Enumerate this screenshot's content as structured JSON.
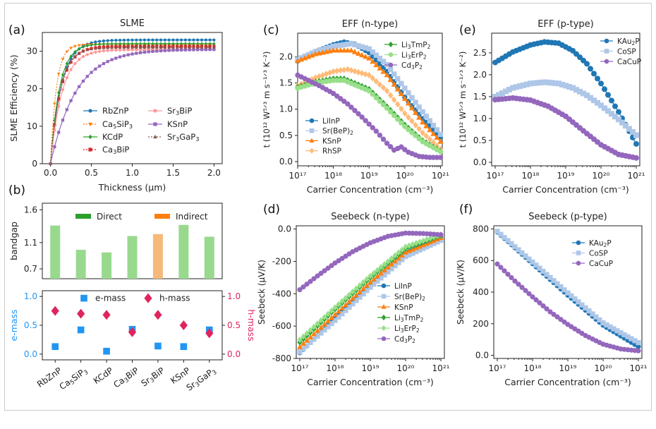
{
  "caption": "",
  "chart_data": [
    {
      "type": "line",
      "panel": "(a)",
      "title": "SLME",
      "xlabel": "Thickness (μm)",
      "ylabel": "SLME Efficiency (%)",
      "xlim": [
        -0.1,
        2.1
      ],
      "ylim": [
        0,
        35
      ],
      "xticks": [
        0.0,
        0.5,
        1.0,
        1.5,
        2.0
      ],
      "yticks": [
        0,
        10,
        20,
        30
      ],
      "legend_position": "center",
      "series": [
        {
          "name": "RbZnP",
          "color": "#1f77b4",
          "marker": "circle",
          "dash": "solid",
          "final": 33.0,
          "k": 7.5
        },
        {
          "name": "Ca5SiP3",
          "color": "#ff7f0e",
          "marker": "tri-down",
          "dash": "dotted",
          "final": 31.8,
          "k": 14.0
        },
        {
          "name": "KCdP",
          "color": "#2ca02c",
          "marker": "diamond",
          "dash": "solid",
          "final": 32.0,
          "k": 9.0
        },
        {
          "name": "Ca3BiP",
          "color": "#d62728",
          "marker": "square",
          "dash": "dotted",
          "final": 31.3,
          "k": 8.0
        },
        {
          "name": "Sr3BiP",
          "color": "#ff9896",
          "marker": "circle",
          "dash": "solid",
          "final": 30.4,
          "k": 7.0
        },
        {
          "name": "KSnP",
          "color": "#9467bd",
          "marker": "square",
          "dash": "solid",
          "final": 30.5,
          "k": 3.2
        },
        {
          "name": "Sr3GaP3",
          "color": "#8c564b",
          "marker": "triangle",
          "dash": "dotted",
          "final": 31.0,
          "k": 8.5
        }
      ]
    },
    {
      "type": "bar",
      "panel": "(b)",
      "ylabel": "bandgap",
      "categories": [
        "RbZnP",
        "Ca5SiP3",
        "KCdP",
        "Ca3BiP",
        "Sr3BiP",
        "KSnP",
        "Sr3GaP3"
      ],
      "values": [
        1.36,
        0.99,
        0.95,
        1.2,
        1.23,
        1.37,
        1.19
      ],
      "gap_type": [
        "Direct",
        "Direct",
        "Direct",
        "Direct",
        "Indirect",
        "Direct",
        "Direct"
      ],
      "ylim": [
        0.55,
        1.7
      ],
      "yticks": [
        0.7,
        1.1,
        1.6
      ],
      "legend": [
        {
          "name": "Direct",
          "color": "#2ca02c"
        },
        {
          "name": "Indirect",
          "color": "#ff7f0e"
        }
      ]
    },
    {
      "type": "scatter",
      "panel": "(b)",
      "categories": [
        "RbZnP",
        "Ca5SiP3",
        "KCdP",
        "Ca3BiP",
        "Sr3BiP",
        "KSnP",
        "Sr3GaP3"
      ],
      "ylabel_left": "e-mass",
      "ylabel_right": "h-mass",
      "yticks": [
        0.0,
        0.5,
        1.0
      ],
      "ylim": [
        -0.1,
        1.1
      ],
      "series": [
        {
          "name": "e-mass",
          "color": "#2196f3",
          "marker": "square",
          "values": [
            0.13,
            0.42,
            0.05,
            0.43,
            0.14,
            0.13,
            0.42
          ]
        },
        {
          "name": "h-mass",
          "color": "#e0245e",
          "marker": "diamond",
          "values": [
            0.75,
            0.7,
            0.68,
            0.38,
            0.68,
            0.5,
            0.36
          ]
        }
      ],
      "legend_markers": [
        {
          "name": "e-mass",
          "color": "#2196f3",
          "marker": "square",
          "value": 0.97
        },
        {
          "name": "h-mass",
          "color": "#e0245e",
          "marker": "diamond",
          "value": 0.97
        }
      ]
    },
    {
      "type": "line",
      "panel": "(c)",
      "title": "EFF (n-type)",
      "xlabel": "Carrier Concentration (cm⁻³)",
      "ylabel": "t (10¹² W⁵ᐟ³ m s⁻¹ᐟ³ K⁻²)",
      "xscale": "log",
      "xlim": [
        17,
        21.05
      ],
      "ylim": [
        -0.08,
        2.45
      ],
      "yticks": [
        0.0,
        0.5,
        1.0,
        1.5,
        2.0
      ],
      "xticks": [
        "10¹⁷",
        "10¹⁸",
        "10¹⁹",
        "10²⁰",
        "10²¹"
      ],
      "series": [
        {
          "name": "LiInP",
          "color": "#1f77b4",
          "marker": "circle",
          "points": [
            [
              17,
              1.92
            ],
            [
              17.5,
              2.1
            ],
            [
              18,
              2.23
            ],
            [
              18.3,
              2.28
            ],
            [
              18.6,
              2.24
            ],
            [
              19,
              2.08
            ],
            [
              19.5,
              1.72
            ],
            [
              20,
              1.23
            ],
            [
              20.5,
              0.82
            ],
            [
              21,
              0.47
            ]
          ]
        },
        {
          "name": "Sr(BeP)2",
          "color": "#aec7e8",
          "marker": "square",
          "points": [
            [
              17,
              1.95
            ],
            [
              17.5,
              2.1
            ],
            [
              18,
              2.2
            ],
            [
              18.5,
              2.25
            ],
            [
              19,
              2.15
            ],
            [
              19.5,
              1.85
            ],
            [
              20,
              1.4
            ],
            [
              20.5,
              0.95
            ],
            [
              21,
              0.52
            ]
          ]
        },
        {
          "name": "KSnP",
          "color": "#ff7f0e",
          "marker": "triangle",
          "points": [
            [
              17,
              1.92
            ],
            [
              17.5,
              2.05
            ],
            [
              18,
              2.12
            ],
            [
              18.5,
              2.12
            ],
            [
              19,
              1.97
            ],
            [
              19.5,
              1.65
            ],
            [
              20,
              1.2
            ],
            [
              20.5,
              0.75
            ],
            [
              21,
              0.38
            ]
          ]
        },
        {
          "name": "RhSP",
          "color": "#ffbb78",
          "marker": "diamond",
          "points": [
            [
              17,
              1.45
            ],
            [
              17.5,
              1.6
            ],
            [
              18,
              1.72
            ],
            [
              18.4,
              1.76
            ],
            [
              19,
              1.65
            ],
            [
              19.5,
              1.35
            ],
            [
              20,
              0.92
            ],
            [
              20.5,
              0.55
            ],
            [
              21,
              0.24
            ]
          ]
        },
        {
          "name": "Li3TmP2",
          "color": "#2ca02c",
          "marker": "diamond",
          "points": [
            [
              17,
              1.42
            ],
            [
              17.5,
              1.52
            ],
            [
              18,
              1.58
            ],
            [
              18.3,
              1.58
            ],
            [
              19,
              1.38
            ],
            [
              19.5,
              1.05
            ],
            [
              20,
              0.7
            ],
            [
              20.5,
              0.4
            ],
            [
              21,
              0.2
            ]
          ]
        },
        {
          "name": "Li3ErP2",
          "color": "#98df8a",
          "marker": "circle",
          "points": [
            [
              17,
              1.4
            ],
            [
              17.5,
              1.5
            ],
            [
              18,
              1.55
            ],
            [
              18.3,
              1.55
            ],
            [
              19,
              1.35
            ],
            [
              19.5,
              1.02
            ],
            [
              20,
              0.67
            ],
            [
              20.5,
              0.38
            ],
            [
              21,
              0.19
            ]
          ]
        },
        {
          "name": "Cd3P2",
          "color": "#9467bd",
          "marker": "circle",
          "points": [
            [
              17,
              1.65
            ],
            [
              17.3,
              1.55
            ],
            [
              17.6,
              1.45
            ],
            [
              18,
              1.3
            ],
            [
              18.4,
              1.1
            ],
            [
              18.8,
              0.85
            ],
            [
              19.2,
              0.58
            ],
            [
              19.5,
              0.35
            ],
            [
              19.7,
              0.22
            ],
            [
              19.9,
              0.28
            ],
            [
              20.1,
              0.18
            ],
            [
              20.4,
              0.1
            ],
            [
              20.7,
              0.08
            ],
            [
              21,
              0.08
            ]
          ]
        }
      ],
      "legends": [
        [
          "Li3TmP2",
          "Li3ErP2",
          "Cd3P2"
        ],
        [
          "LiInP",
          "Sr(BeP)2",
          "KSnP",
          "RhSP"
        ]
      ]
    },
    {
      "type": "line",
      "panel": "(d)",
      "title": "Seebeck (n-type)",
      "xlabel": "Carrier Concentration (cm⁻³)",
      "ylabel": "Seebeck (μV/K)",
      "xscale": "log",
      "xlim": [
        16.9,
        21.1
      ],
      "ylim": [
        -800,
        20
      ],
      "yticks": [
        0,
        -200,
        -400,
        -600,
        -800
      ],
      "xticks": [
        "10¹⁷",
        "10¹⁸",
        "10¹⁹",
        "10²⁰",
        "10²¹"
      ],
      "series": [
        {
          "name": "LiInP",
          "color": "#1f77b4",
          "marker": "circle",
          "points": [
            [
              17,
              -765
            ],
            [
              18,
              -555
            ],
            [
              19,
              -345
            ],
            [
              20,
              -150
            ],
            [
              21,
              -55
            ]
          ]
        },
        {
          "name": "Sr(BeP)2",
          "color": "#aec7e8",
          "marker": "square",
          "points": [
            [
              17,
              -760
            ],
            [
              18,
              -565
            ],
            [
              19,
              -360
            ],
            [
              20,
              -170
            ],
            [
              21,
              -70
            ]
          ]
        },
        {
          "name": "KSnP",
          "color": "#ff7f0e",
          "marker": "triangle",
          "points": [
            [
              17,
              -730
            ],
            [
              18,
              -530
            ],
            [
              19,
              -330
            ],
            [
              20,
              -145
            ],
            [
              21,
              -55
            ]
          ]
        },
        {
          "name": "Li3TmP2",
          "color": "#2ca02c",
          "marker": "diamond",
          "points": [
            [
              17,
              -700
            ],
            [
              18,
              -495
            ],
            [
              19,
              -300
            ],
            [
              20,
              -120
            ],
            [
              21,
              -40
            ]
          ]
        },
        {
          "name": "Li3ErP2",
          "color": "#98df8a",
          "marker": "diamond",
          "points": [
            [
              17,
              -685
            ],
            [
              18,
              -485
            ],
            [
              19,
              -290
            ],
            [
              20,
              -110
            ],
            [
              21,
              -35
            ]
          ]
        },
        {
          "name": "Cd3P2",
          "color": "#9467bd",
          "marker": "circle",
          "points": [
            [
              17,
              -375
            ],
            [
              17.5,
              -290
            ],
            [
              18,
              -210
            ],
            [
              18.5,
              -140
            ],
            [
              19,
              -85
            ],
            [
              19.5,
              -45
            ],
            [
              20,
              -25
            ],
            [
              20.5,
              -28
            ],
            [
              21,
              -35
            ]
          ]
        }
      ],
      "legend_position": "bottom-right"
    },
    {
      "type": "line",
      "panel": "(e)",
      "title": "EFF (p-type)",
      "xlabel": "Carrier Concentration (cm⁻³)",
      "ylabel": "t (10¹² W⁵ᐟ³ m s⁻¹ᐟ³ K⁻²)",
      "xscale": "log",
      "xlim": [
        16.9,
        21.1
      ],
      "ylim": [
        -0.08,
        2.95
      ],
      "yticks": [
        0.0,
        0.5,
        1.0,
        1.5,
        2.0,
        2.5
      ],
      "xticks": [
        "10¹⁷",
        "10¹⁸",
        "10¹⁹",
        "10²⁰",
        "10²¹"
      ],
      "series": [
        {
          "name": "KAu2P",
          "color": "#1f77b4",
          "marker": "circle",
          "points": [
            [
              17,
              2.28
            ],
            [
              17.5,
              2.52
            ],
            [
              18,
              2.68
            ],
            [
              18.4,
              2.75
            ],
            [
              18.8,
              2.72
            ],
            [
              19.2,
              2.55
            ],
            [
              19.6,
              2.25
            ],
            [
              20,
              1.8
            ],
            [
              20.5,
              1.15
            ],
            [
              21,
              0.42
            ]
          ]
        },
        {
          "name": "CoSP",
          "color": "#aec7e8",
          "marker": "square",
          "points": [
            [
              17,
              1.5
            ],
            [
              17.5,
              1.7
            ],
            [
              18,
              1.8
            ],
            [
              18.4,
              1.83
            ],
            [
              18.8,
              1.8
            ],
            [
              19.2,
              1.7
            ],
            [
              19.6,
              1.53
            ],
            [
              20,
              1.3
            ],
            [
              20.5,
              0.98
            ],
            [
              21,
              0.62
            ]
          ]
        },
        {
          "name": "CaCuP",
          "color": "#9467bd",
          "marker": "circle",
          "points": [
            [
              17,
              1.43
            ],
            [
              17.5,
              1.47
            ],
            [
              18,
              1.42
            ],
            [
              18.5,
              1.28
            ],
            [
              19,
              1.05
            ],
            [
              19.5,
              0.72
            ],
            [
              20,
              0.4
            ],
            [
              20.5,
              0.18
            ],
            [
              21,
              0.1
            ]
          ]
        }
      ],
      "legend_position": "top-right"
    },
    {
      "type": "line",
      "panel": "(f)",
      "title": "Seebeck (p-type)",
      "xlabel": "Carrier Concentration (cm⁻³)",
      "ylabel": "Seebeck (μV/K)",
      "xscale": "log",
      "xlim": [
        16.9,
        21.1
      ],
      "ylim": [
        -20,
        820
      ],
      "yticks": [
        0,
        200,
        400,
        600,
        800
      ],
      "xticks": [
        "10¹⁷",
        "10¹⁸",
        "10¹⁹",
        "10²⁰",
        "10²¹"
      ],
      "series": [
        {
          "name": "KAu2P",
          "color": "#1f77b4",
          "marker": "circle",
          "points": [
            [
              17,
              780
            ],
            [
              18,
              580
            ],
            [
              19,
              380
            ],
            [
              20,
              190
            ],
            [
              21,
              55
            ]
          ]
        },
        {
          "name": "CoSP",
          "color": "#aec7e8",
          "marker": "square",
          "points": [
            [
              17,
              785
            ],
            [
              18,
              590
            ],
            [
              19,
              395
            ],
            [
              20,
              205
            ],
            [
              21,
              80
            ]
          ]
        },
        {
          "name": "CaCuP",
          "color": "#9467bd",
          "marker": "circle",
          "points": [
            [
              17,
              578
            ],
            [
              17.5,
              470
            ],
            [
              18,
              370
            ],
            [
              18.5,
              275
            ],
            [
              19,
              195
            ],
            [
              19.5,
              125
            ],
            [
              20,
              70
            ],
            [
              20.5,
              40
            ],
            [
              21,
              28
            ]
          ]
        }
      ],
      "legend_position": "top-right"
    }
  ]
}
